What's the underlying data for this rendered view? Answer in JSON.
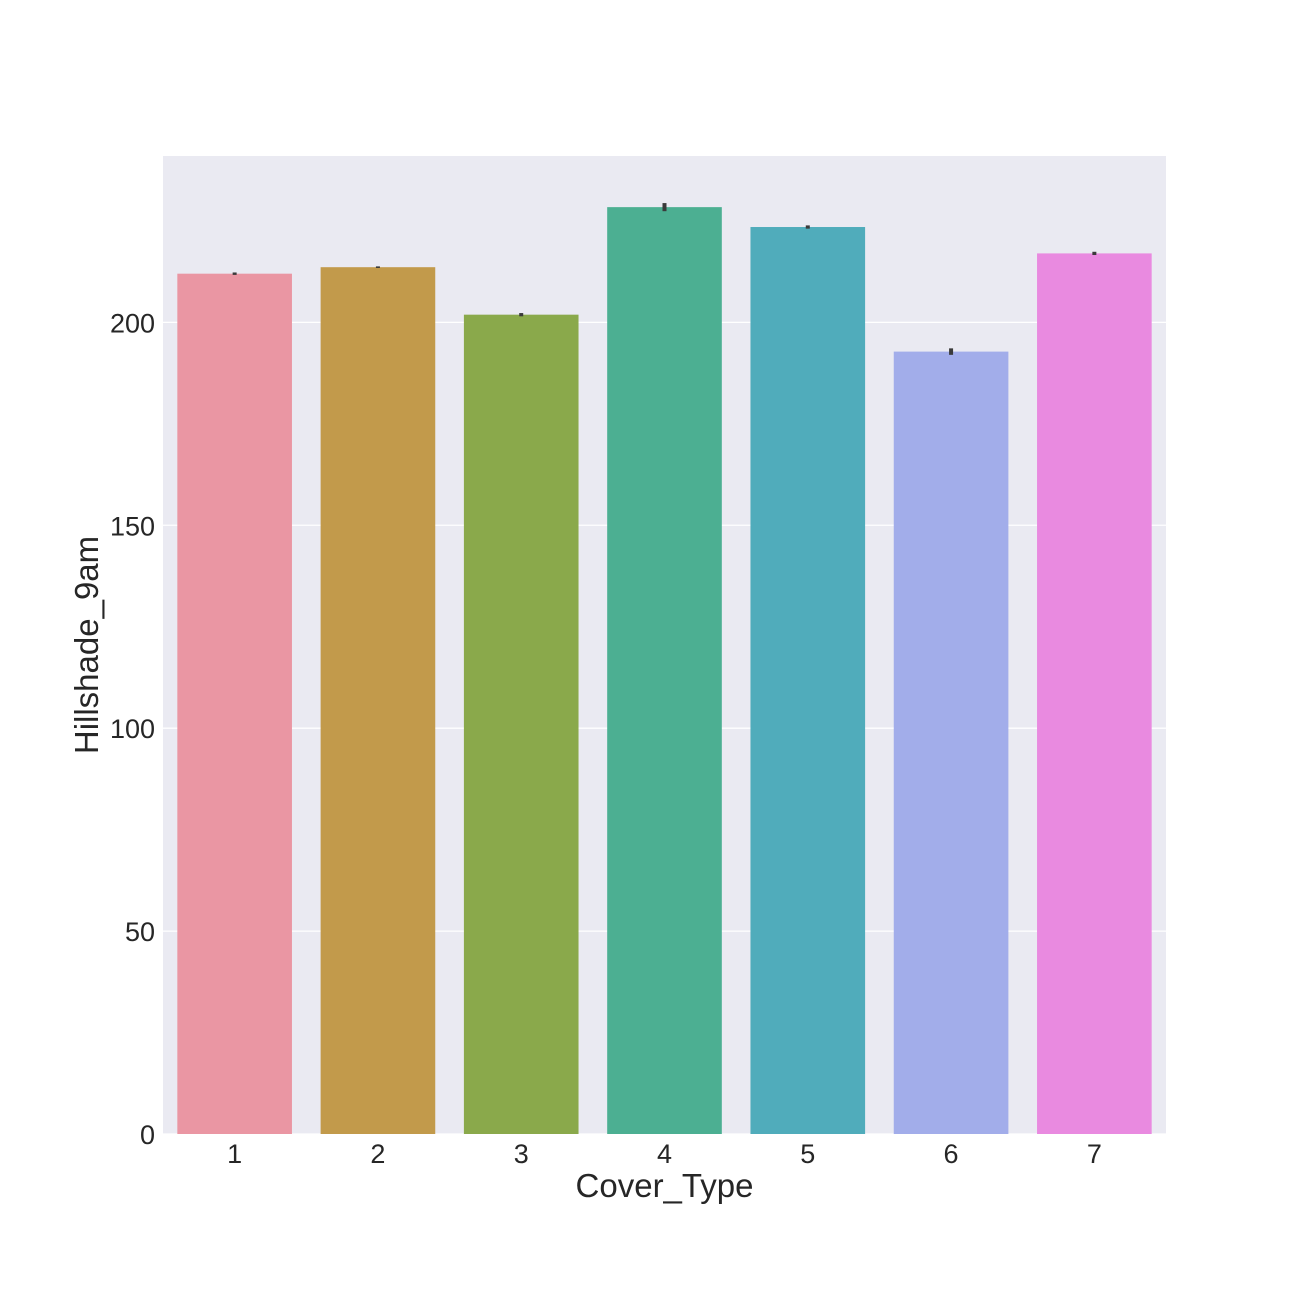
{
  "chart_data": {
    "type": "bar",
    "title": "",
    "xlabel": "Cover_Type",
    "ylabel": "Hillshade_9am",
    "categories": [
      "1",
      "2",
      "3",
      "4",
      "5",
      "6",
      "7"
    ],
    "values": [
      212.0,
      213.6,
      201.9,
      228.4,
      223.5,
      192.8,
      217.0
    ],
    "error_bars": [
      [
        211.7,
        212.3
      ],
      [
        213.4,
        213.8
      ],
      [
        201.5,
        202.3
      ],
      [
        227.4,
        229.4
      ],
      [
        223.1,
        223.9
      ],
      [
        192.0,
        193.6
      ],
      [
        216.6,
        217.4
      ]
    ],
    "colors": [
      "#ea96a3",
      "#c29a4b",
      "#8aa94b",
      "#4caf92",
      "#50acbb",
      "#a2adea",
      "#e98ae0"
    ],
    "error_color": "#3a3a3a",
    "background": "#eaeaf2",
    "grid": true,
    "yticks": [
      0,
      50,
      100,
      150,
      200
    ],
    "ylim": [
      0,
      241
    ]
  }
}
